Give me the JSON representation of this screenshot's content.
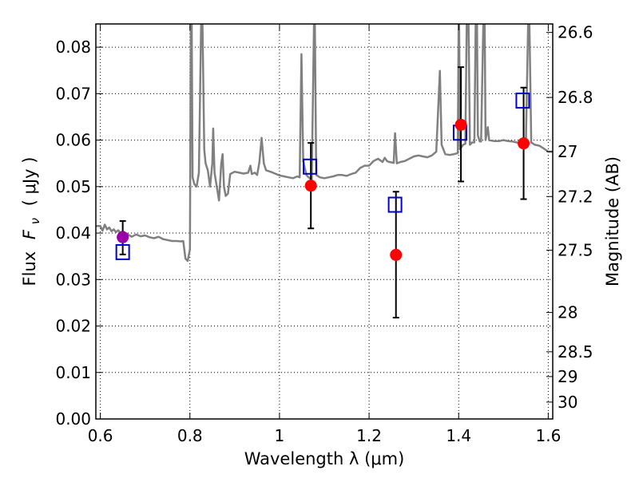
{
  "chart_data": {
    "type": "scatter",
    "xlabel": "Wavelength  λ (μm)",
    "ylabel": "Flux  F_ν  ( μJy )",
    "ylabel_parts": {
      "prefix": "Flux",
      "symbol": "F",
      "subscript": "ν",
      "unit": "( μJy )"
    },
    "y2label": "Magnitude (AB)",
    "xlim": [
      0.59,
      1.61
    ],
    "ylim": [
      0.0,
      0.085
    ],
    "grid": true,
    "x_ticks": [
      0.6,
      0.8,
      1.0,
      1.2,
      1.4,
      1.6
    ],
    "x_tick_labels": [
      "0.6",
      "0.8",
      "1",
      "1.2",
      "1.4",
      "1.6"
    ],
    "y_ticks": [
      0.0,
      0.01,
      0.02,
      0.03,
      0.04,
      0.05,
      0.06,
      0.07,
      0.08
    ],
    "y_tick_labels": [
      "0.00",
      "0.01",
      "0.02",
      "0.03",
      "0.04",
      "0.05",
      "0.06",
      "0.07",
      "0.08"
    ],
    "y2_tick_labels": [
      "26.6",
      "26.8",
      "27",
      "27.2",
      "27.5",
      "28",
      "28.5",
      "29",
      "30"
    ],
    "y2_tick_values": [
      26.6,
      26.8,
      27.0,
      27.2,
      27.5,
      28.0,
      28.5,
      29.0,
      30.0
    ],
    "colors": {
      "spectrum": "#808080",
      "observed": "#ff0000",
      "observed_first": "#9900aa",
      "model": "#0000cc",
      "errorbar": "#000000",
      "grid": "#000000"
    },
    "series": [
      {
        "kind": "spectrum",
        "points": [
          [
            0.59,
            0.0415
          ],
          [
            0.6,
            0.0415
          ],
          [
            0.605,
            0.0405
          ],
          [
            0.61,
            0.0418
          ],
          [
            0.615,
            0.0408
          ],
          [
            0.62,
            0.0412
          ],
          [
            0.625,
            0.0404
          ],
          [
            0.63,
            0.0408
          ],
          [
            0.635,
            0.0402
          ],
          [
            0.64,
            0.0406
          ],
          [
            0.645,
            0.0401
          ],
          [
            0.65,
            0.0404
          ],
          [
            0.66,
            0.0398
          ],
          [
            0.67,
            0.0392
          ],
          [
            0.68,
            0.0397
          ],
          [
            0.69,
            0.0393
          ],
          [
            0.7,
            0.0395
          ],
          [
            0.71,
            0.0391
          ],
          [
            0.72,
            0.0389
          ],
          [
            0.73,
            0.0392
          ],
          [
            0.74,
            0.0387
          ],
          [
            0.75,
            0.0385
          ],
          [
            0.76,
            0.0383
          ],
          [
            0.77,
            0.0383
          ],
          [
            0.78,
            0.0382
          ],
          [
            0.785,
            0.0383
          ],
          [
            0.79,
            0.0345
          ],
          [
            0.795,
            0.034
          ],
          [
            0.8,
            0.0365
          ],
          [
            0.802,
            0.085
          ],
          [
            0.804,
            0.085
          ],
          [
            0.806,
            0.052
          ],
          [
            0.81,
            0.0505
          ],
          [
            0.815,
            0.05
          ],
          [
            0.82,
            0.053
          ],
          [
            0.825,
            0.085
          ],
          [
            0.828,
            0.085
          ],
          [
            0.832,
            0.058
          ],
          [
            0.835,
            0.055
          ],
          [
            0.84,
            0.0535
          ],
          [
            0.845,
            0.05
          ],
          [
            0.85,
            0.055
          ],
          [
            0.852,
            0.0625
          ],
          [
            0.855,
            0.053
          ],
          [
            0.86,
            0.05
          ],
          [
            0.865,
            0.047
          ],
          [
            0.87,
            0.055
          ],
          [
            0.873,
            0.057
          ],
          [
            0.876,
            0.05
          ],
          [
            0.88,
            0.048
          ],
          [
            0.885,
            0.0485
          ],
          [
            0.89,
            0.0527
          ],
          [
            0.9,
            0.0532
          ],
          [
            0.91,
            0.053
          ],
          [
            0.92,
            0.0528
          ],
          [
            0.93,
            0.053
          ],
          [
            0.935,
            0.0545
          ],
          [
            0.938,
            0.0527
          ],
          [
            0.945,
            0.053
          ],
          [
            0.95,
            0.0525
          ],
          [
            0.955,
            0.0552
          ],
          [
            0.96,
            0.0605
          ],
          [
            0.965,
            0.055
          ],
          [
            0.97,
            0.0535
          ],
          [
            0.98,
            0.0532
          ],
          [
            0.99,
            0.0528
          ],
          [
            1.0,
            0.0524
          ],
          [
            1.01,
            0.0522
          ],
          [
            1.02,
            0.052
          ],
          [
            1.03,
            0.0518
          ],
          [
            1.04,
            0.0522
          ],
          [
            1.045,
            0.052
          ],
          [
            1.049,
            0.0785
          ],
          [
            1.053,
            0.0555
          ],
          [
            1.06,
            0.0525
          ],
          [
            1.065,
            0.052
          ],
          [
            1.072,
            0.0515
          ],
          [
            1.077,
            0.085
          ],
          [
            1.079,
            0.085
          ],
          [
            1.082,
            0.0525
          ],
          [
            1.09,
            0.052
          ],
          [
            1.1,
            0.0518
          ],
          [
            1.11,
            0.052
          ],
          [
            1.12,
            0.0522
          ],
          [
            1.13,
            0.0525
          ],
          [
            1.14,
            0.0525
          ],
          [
            1.15,
            0.0523
          ],
          [
            1.16,
            0.0527
          ],
          [
            1.17,
            0.053
          ],
          [
            1.18,
            0.054
          ],
          [
            1.19,
            0.0545
          ],
          [
            1.2,
            0.0545
          ],
          [
            1.21,
            0.0555
          ],
          [
            1.22,
            0.056
          ],
          [
            1.23,
            0.0553
          ],
          [
            1.235,
            0.0562
          ],
          [
            1.24,
            0.0555
          ],
          [
            1.245,
            0.0553
          ],
          [
            1.25,
            0.0552
          ],
          [
            1.255,
            0.0551
          ],
          [
            1.258,
            0.0615
          ],
          [
            1.262,
            0.055
          ],
          [
            1.27,
            0.0553
          ],
          [
            1.28,
            0.0555
          ],
          [
            1.29,
            0.056
          ],
          [
            1.3,
            0.0565
          ],
          [
            1.31,
            0.0567
          ],
          [
            1.32,
            0.0565
          ],
          [
            1.33,
            0.0563
          ],
          [
            1.34,
            0.0567
          ],
          [
            1.35,
            0.0575
          ],
          [
            1.358,
            0.0749
          ],
          [
            1.362,
            0.059
          ],
          [
            1.37,
            0.057
          ],
          [
            1.38,
            0.0568
          ],
          [
            1.39,
            0.057
          ],
          [
            1.398,
            0.0572
          ],
          [
            1.4,
            0.085
          ],
          [
            1.401,
            0.085
          ],
          [
            1.403,
            0.058
          ],
          [
            1.41,
            0.059
          ],
          [
            1.415,
            0.0592
          ],
          [
            1.418,
            0.085
          ],
          [
            1.422,
            0.085
          ],
          [
            1.425,
            0.059
          ],
          [
            1.43,
            0.0595
          ],
          [
            1.435,
            0.0595
          ],
          [
            1.438,
            0.085
          ],
          [
            1.441,
            0.085
          ],
          [
            1.443,
            0.061
          ],
          [
            1.447,
            0.0597
          ],
          [
            1.45,
            0.0597
          ],
          [
            1.455,
            0.085
          ],
          [
            1.458,
            0.085
          ],
          [
            1.46,
            0.06
          ],
          [
            1.465,
            0.0628
          ],
          [
            1.468,
            0.06
          ],
          [
            1.48,
            0.0598
          ],
          [
            1.49,
            0.0598
          ],
          [
            1.5,
            0.06
          ],
          [
            1.51,
            0.0598
          ],
          [
            1.52,
            0.0597
          ],
          [
            1.53,
            0.0595
          ],
          [
            1.54,
            0.0592
          ],
          [
            1.545,
            0.0605
          ],
          [
            1.55,
            0.0595
          ],
          [
            1.555,
            0.085
          ],
          [
            1.558,
            0.085
          ],
          [
            1.562,
            0.0595
          ],
          [
            1.57,
            0.059
          ],
          [
            1.58,
            0.0588
          ],
          [
            1.59,
            0.0582
          ],
          [
            1.6,
            0.0575
          ],
          [
            1.61,
            0.0575
          ]
        ]
      },
      {
        "kind": "observed",
        "points": [
          {
            "x": 0.65,
            "y": 0.0391,
            "err_lo": 0.0037,
            "err_hi": 0.0035
          },
          {
            "x": 1.07,
            "y": 0.0502,
            "err_lo": 0.0092,
            "err_hi": 0.0092
          },
          {
            "x": 1.26,
            "y": 0.0353,
            "err_lo": 0.0135,
            "err_hi": 0.0136
          },
          {
            "x": 1.405,
            "y": 0.0633,
            "err_lo": 0.0122,
            "err_hi": 0.0124
          },
          {
            "x": 1.545,
            "y": 0.0593,
            "err_lo": 0.012,
            "err_hi": 0.012
          }
        ]
      },
      {
        "kind": "model",
        "points": [
          {
            "x": 0.65,
            "y": 0.0359
          },
          {
            "x": 1.068,
            "y": 0.0543
          },
          {
            "x": 1.258,
            "y": 0.0461
          },
          {
            "x": 1.403,
            "y": 0.0616
          },
          {
            "x": 1.543,
            "y": 0.0685
          }
        ]
      }
    ]
  }
}
